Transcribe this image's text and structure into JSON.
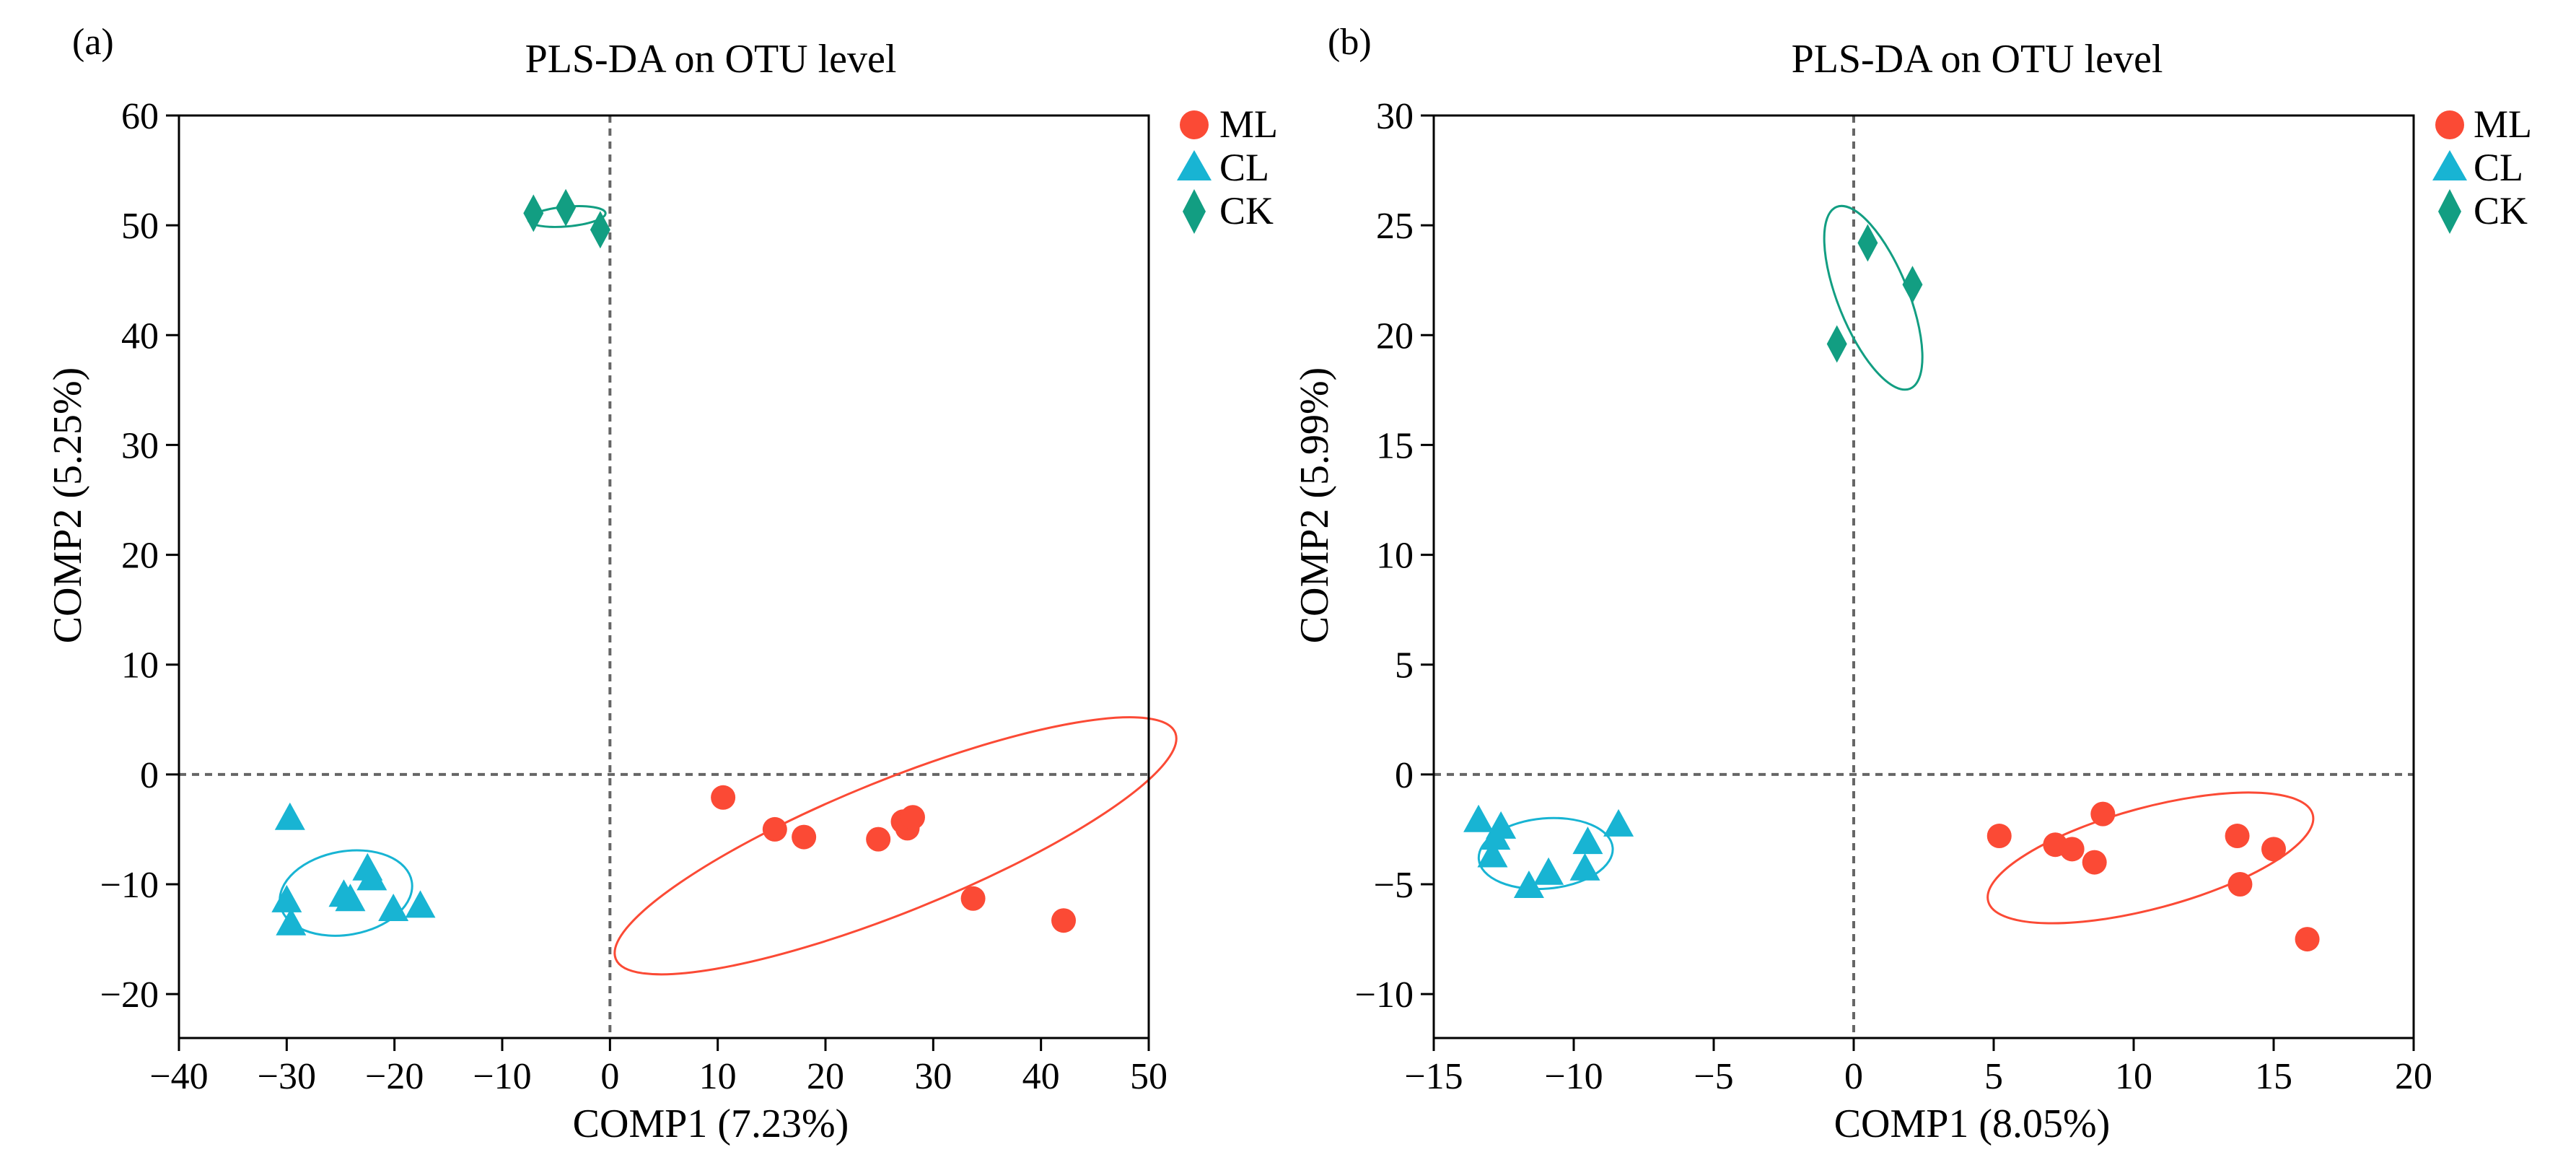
{
  "colors": {
    "ML": "#fb4a35",
    "CL": "#18b4d3",
    "CK": "#129e82",
    "axis": "#000000",
    "refline": "#666666"
  },
  "chart_data": [
    {
      "type": "scatter",
      "panel_label": "(a)",
      "title": "PLS-DA on OTU level",
      "xlabel": "COMP1 (7.23%)",
      "ylabel": "COMP2 (5.25%)",
      "xlim": [
        -40,
        50
      ],
      "ylim": [
        -24,
        60
      ],
      "xticks": [
        -40,
        -30,
        -20,
        -10,
        0,
        10,
        20,
        30,
        40,
        50
      ],
      "xtick_labels": [
        "−40",
        "−30",
        "−20",
        "−10",
        "0",
        "10",
        "20",
        "30",
        "40",
        "50"
      ],
      "yticks": [
        -20,
        -10,
        0,
        10,
        20,
        30,
        40,
        50,
        60
      ],
      "ytick_labels": [
        "−20",
        "−10",
        "0",
        "10",
        "20",
        "30",
        "40",
        "50",
        "60"
      ],
      "reference_lines": {
        "x": 0,
        "y": 0
      },
      "legend_position": "top-right outside",
      "series": [
        {
          "name": "ML",
          "marker": "circle",
          "x": [
            10.5,
            15.3,
            18.0,
            24.9,
            27.2,
            27.6,
            28.1,
            33.7,
            42.1
          ],
          "y": [
            -2.1,
            -5.0,
            -5.7,
            -5.9,
            -4.3,
            -4.9,
            -3.9,
            -11.3,
            -13.3
          ],
          "ellipse": {
            "cx": 26.5,
            "cy": -6.5,
            "rx": 28.0,
            "ry": 6.0,
            "angle_deg": -22
          }
        },
        {
          "name": "CL",
          "marker": "triangle",
          "x": [
            -29.7,
            -30.0,
            -29.6,
            -24.7,
            -24.1,
            -22.5,
            -22.1,
            -20.1,
            -17.6
          ],
          "y": [
            -4.0,
            -11.5,
            -13.6,
            -11.0,
            -11.4,
            -8.6,
            -9.5,
            -12.3,
            -12.0
          ],
          "ellipse": {
            "cx": -24.5,
            "cy": -10.8,
            "rx": 6.2,
            "ry": 3.8,
            "angle_deg": -10
          }
        },
        {
          "name": "CK",
          "marker": "diamond",
          "x": [
            -7.1,
            -4.1,
            -0.9
          ],
          "y": [
            51.1,
            51.6,
            49.6
          ],
          "ellipse": {
            "cx": -4.0,
            "cy": 50.8,
            "rx": 3.6,
            "ry": 0.9,
            "angle_deg": -5
          }
        }
      ]
    },
    {
      "type": "scatter",
      "panel_label": "(b)",
      "title": "PLS-DA on OTU level",
      "xlabel": "COMP1 (8.05%)",
      "ylabel": "COMP2 (5.99%)",
      "xlim": [
        -15,
        20
      ],
      "ylim": [
        -12,
        30
      ],
      "xticks": [
        -15,
        -10,
        -5,
        0,
        5,
        10,
        15,
        20
      ],
      "xtick_labels": [
        "−15",
        "−10",
        "−5",
        "0",
        "5",
        "10",
        "15",
        "20"
      ],
      "yticks": [
        -10,
        -5,
        0,
        5,
        10,
        15,
        20,
        25,
        30
      ],
      "ytick_labels": [
        "−10",
        "−5",
        "0",
        "5",
        "10",
        "15",
        "20",
        "25",
        "30"
      ],
      "reference_lines": {
        "x": 0,
        "y": 0
      },
      "legend_position": "top-right outside",
      "series": [
        {
          "name": "ML",
          "marker": "circle",
          "x": [
            5.2,
            7.2,
            7.8,
            8.6,
            8.9,
            13.7,
            13.8,
            15.0,
            16.2
          ],
          "y": [
            -2.8,
            -3.2,
            -3.4,
            -4.0,
            -1.8,
            -2.8,
            -5.0,
            -3.4,
            -7.5
          ],
          "ellipse": {
            "cx": 10.6,
            "cy": -3.8,
            "rx": 6.0,
            "ry": 2.3,
            "angle_deg": -15
          }
        },
        {
          "name": "CL",
          "marker": "triangle",
          "x": [
            -13.4,
            -12.6,
            -12.8,
            -12.9,
            -11.6,
            -10.9,
            -9.6,
            -9.5,
            -8.4
          ],
          "y": [
            -2.1,
            -2.4,
            -2.9,
            -3.7,
            -5.1,
            -4.5,
            -4.3,
            -3.1,
            -2.3
          ],
          "ellipse": {
            "cx": -11.0,
            "cy": -3.6,
            "rx": 2.4,
            "ry": 1.6,
            "angle_deg": -5
          }
        },
        {
          "name": "CK",
          "marker": "diamond",
          "x": [
            -0.6,
            0.5,
            2.1
          ],
          "y": [
            19.6,
            24.2,
            22.3
          ],
          "ellipse": {
            "cx": 0.7,
            "cy": 21.7,
            "rx": 3.5,
            "ry": 1.6,
            "angle_deg": 68
          }
        }
      ]
    }
  ]
}
